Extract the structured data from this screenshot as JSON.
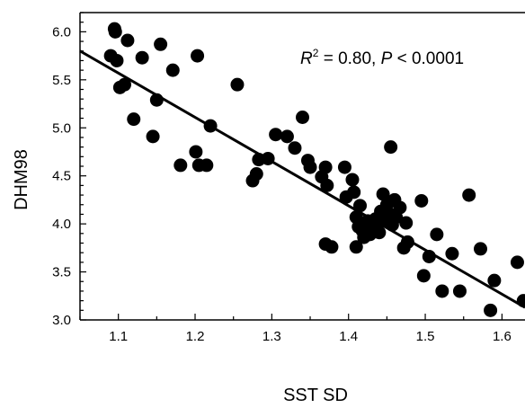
{
  "chart_data": {
    "type": "scatter",
    "title": "",
    "xlabel": "SST SD",
    "ylabel": "DHM98",
    "xlim": [
      1.05,
      1.63
    ],
    "ylim": [
      3.0,
      6.2
    ],
    "x_ticks": [
      "1.1",
      "1.2",
      "1.3",
      "1.4",
      "1.5",
      "1.6"
    ],
    "y_ticks": [
      "3.0",
      "3.5",
      "4.0",
      "4.5",
      "5.0",
      "5.5",
      "6.0"
    ],
    "annotation": {
      "r_symbol": "R",
      "r_power": "2",
      "r_rest": " = 0.80, ",
      "p_symbol": "P",
      "p_rest": " < 0.0001"
    },
    "trendline": {
      "x": [
        1.05,
        1.63
      ],
      "y": [
        5.8,
        3.13
      ]
    },
    "points": [
      {
        "x": 1.09,
        "y": 5.75
      },
      {
        "x": 1.095,
        "y": 6.03
      },
      {
        "x": 1.096,
        "y": 6.0
      },
      {
        "x": 1.098,
        "y": 5.7
      },
      {
        "x": 1.102,
        "y": 5.42
      },
      {
        "x": 1.108,
        "y": 5.45
      },
      {
        "x": 1.112,
        "y": 5.91
      },
      {
        "x": 1.12,
        "y": 5.09
      },
      {
        "x": 1.131,
        "y": 5.73
      },
      {
        "x": 1.145,
        "y": 4.91
      },
      {
        "x": 1.15,
        "y": 5.29
      },
      {
        "x": 1.155,
        "y": 5.87
      },
      {
        "x": 1.171,
        "y": 5.6
      },
      {
        "x": 1.181,
        "y": 4.61
      },
      {
        "x": 1.201,
        "y": 4.75
      },
      {
        "x": 1.203,
        "y": 5.75
      },
      {
        "x": 1.205,
        "y": 4.61
      },
      {
        "x": 1.215,
        "y": 4.61
      },
      {
        "x": 1.22,
        "y": 5.02
      },
      {
        "x": 1.255,
        "y": 5.45
      },
      {
        "x": 1.275,
        "y": 4.45
      },
      {
        "x": 1.28,
        "y": 4.52
      },
      {
        "x": 1.283,
        "y": 4.67
      },
      {
        "x": 1.295,
        "y": 4.68
      },
      {
        "x": 1.305,
        "y": 4.93
      },
      {
        "x": 1.32,
        "y": 4.91
      },
      {
        "x": 1.33,
        "y": 4.79
      },
      {
        "x": 1.34,
        "y": 5.11
      },
      {
        "x": 1.347,
        "y": 4.66
      },
      {
        "x": 1.35,
        "y": 4.59
      },
      {
        "x": 1.365,
        "y": 4.49
      },
      {
        "x": 1.37,
        "y": 4.59
      },
      {
        "x": 1.372,
        "y": 4.4
      },
      {
        "x": 1.37,
        "y": 3.79
      },
      {
        "x": 1.378,
        "y": 3.76
      },
      {
        "x": 1.395,
        "y": 4.59
      },
      {
        "x": 1.397,
        "y": 4.28
      },
      {
        "x": 1.405,
        "y": 4.46
      },
      {
        "x": 1.407,
        "y": 4.33
      },
      {
        "x": 1.41,
        "y": 4.07
      },
      {
        "x": 1.41,
        "y": 3.76
      },
      {
        "x": 1.413,
        "y": 3.97
      },
      {
        "x": 1.415,
        "y": 4.19
      },
      {
        "x": 1.418,
        "y": 3.93
      },
      {
        "x": 1.42,
        "y": 3.86
      },
      {
        "x": 1.425,
        "y": 4.03
      },
      {
        "x": 1.428,
        "y": 3.89
      },
      {
        "x": 1.432,
        "y": 3.95
      },
      {
        "x": 1.435,
        "y": 4.05
      },
      {
        "x": 1.437,
        "y": 3.98
      },
      {
        "x": 1.44,
        "y": 3.91
      },
      {
        "x": 1.442,
        "y": 4.13
      },
      {
        "x": 1.445,
        "y": 4.31
      },
      {
        "x": 1.447,
        "y": 4.05
      },
      {
        "x": 1.45,
        "y": 4.2
      },
      {
        "x": 1.452,
        "y": 4.11
      },
      {
        "x": 1.455,
        "y": 4.8
      },
      {
        "x": 1.457,
        "y": 3.99
      },
      {
        "x": 1.46,
        "y": 4.25
      },
      {
        "x": 1.462,
        "y": 4.07
      },
      {
        "x": 1.467,
        "y": 4.17
      },
      {
        "x": 1.472,
        "y": 3.75
      },
      {
        "x": 1.475,
        "y": 4.01
      },
      {
        "x": 1.477,
        "y": 3.81
      },
      {
        "x": 1.495,
        "y": 4.24
      },
      {
        "x": 1.498,
        "y": 3.46
      },
      {
        "x": 1.505,
        "y": 3.66
      },
      {
        "x": 1.515,
        "y": 3.89
      },
      {
        "x": 1.522,
        "y": 3.3
      },
      {
        "x": 1.535,
        "y": 3.69
      },
      {
        "x": 1.545,
        "y": 3.3
      },
      {
        "x": 1.557,
        "y": 4.3
      },
      {
        "x": 1.572,
        "y": 3.74
      },
      {
        "x": 1.585,
        "y": 3.1
      },
      {
        "x": 1.59,
        "y": 3.41
      },
      {
        "x": 1.62,
        "y": 3.6
      },
      {
        "x": 1.628,
        "y": 3.2
      }
    ]
  }
}
